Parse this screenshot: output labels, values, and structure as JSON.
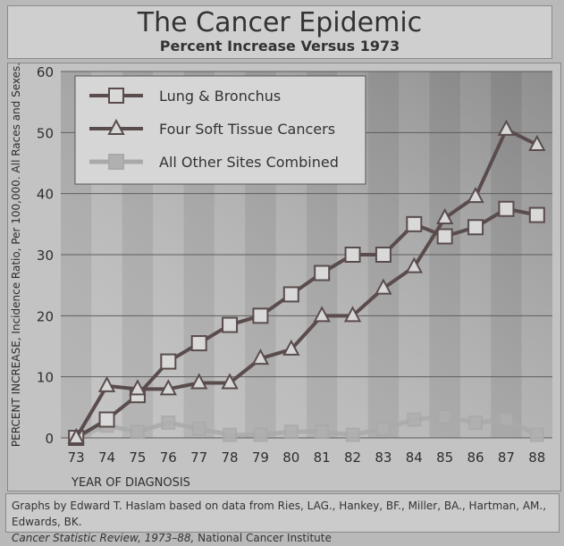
{
  "chart_data": {
    "type": "line",
    "title": "The Cancer Epidemic",
    "subtitle": "Percent Increase Versus 1973",
    "xlabel": "YEAR OF DIAGNOSIS",
    "ylabel": "PERCENT INCREASE, Incidence Ratio, Per 100,000. All Races and Sexes.",
    "categories": [
      "73",
      "74",
      "75",
      "76",
      "77",
      "78",
      "79",
      "80",
      "81",
      "82",
      "83",
      "84",
      "85",
      "86",
      "87",
      "88"
    ],
    "ylim": [
      0,
      60
    ],
    "yticks": [
      0,
      10,
      20,
      30,
      40,
      50,
      60
    ],
    "grid": true,
    "legend_position": "top-left",
    "series": [
      {
        "name": "Lung & Bronchus",
        "marker": "square",
        "color": "#5a4c4c",
        "values": [
          0,
          3,
          7,
          12.5,
          15.5,
          18.5,
          20,
          23.5,
          27,
          30,
          30,
          35,
          33,
          34.5,
          37.5,
          36.5
        ]
      },
      {
        "name": "Four Soft Tissue Cancers",
        "marker": "triangle",
        "color": "#5a4c4c",
        "values": [
          0,
          8.5,
          8,
          8,
          9,
          9,
          13,
          14.5,
          20,
          20,
          24.5,
          28,
          36,
          39.5,
          50.5,
          48
        ]
      },
      {
        "name": "All Other Sites Combined",
        "marker": "square",
        "color": "#a9a9a9",
        "values": [
          0,
          2,
          1,
          2.5,
          1.5,
          0.5,
          0.5,
          1,
          1,
          0.5,
          1.5,
          3,
          3.5,
          2.5,
          3,
          0.5
        ]
      }
    ]
  },
  "footer": {
    "line1": "Graphs by Edward T. Haslam based on data from Ries, LAG., Hankey, BF., Miller, BA., Hartman, AM., Edwards, BK.",
    "line2_italic": "Cancer Statistic Review, 1973–88,",
    "line2_rest": " National Cancer Institute"
  }
}
